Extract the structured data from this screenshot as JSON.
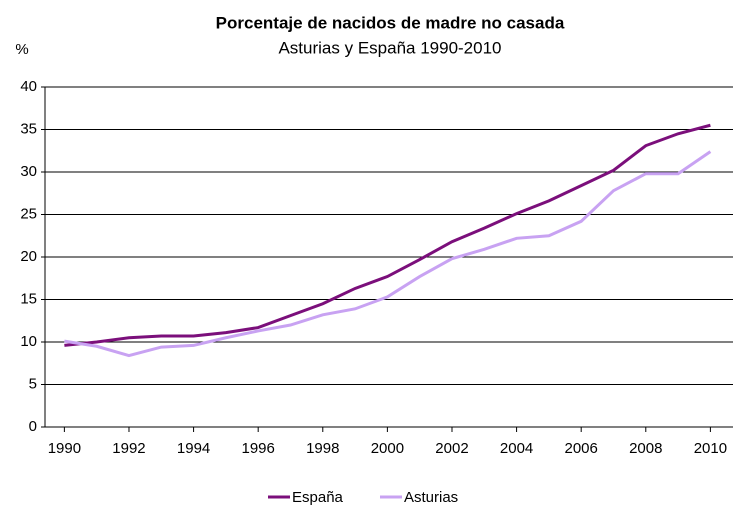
{
  "chart_data": {
    "type": "line",
    "title": "Porcentaje de nacidos de madre no casada",
    "subtitle": "Asturias y España 1990-2010",
    "y_label": "%",
    "x": [
      1990,
      1991,
      1992,
      1993,
      1994,
      1995,
      1996,
      1997,
      1998,
      1999,
      2000,
      2001,
      2002,
      2003,
      2004,
      2005,
      2006,
      2007,
      2008,
      2009,
      2010
    ],
    "series": [
      {
        "name": "España",
        "color": "#7b0f7b",
        "values": [
          9.6,
          10.0,
          10.5,
          10.7,
          10.7,
          11.1,
          11.7,
          13.1,
          14.5,
          16.3,
          17.7,
          19.7,
          21.8,
          23.4,
          25.1,
          26.6,
          28.4,
          30.2,
          33.1,
          34.5,
          35.5
        ]
      },
      {
        "name": "Asturias",
        "color": "#c8a2f2",
        "values": [
          10.1,
          9.5,
          8.4,
          9.4,
          9.6,
          10.5,
          11.3,
          12.0,
          13.2,
          13.9,
          15.3,
          17.7,
          19.8,
          20.9,
          22.2,
          22.5,
          24.2,
          27.8,
          29.8,
          29.8,
          32.4
        ]
      }
    ],
    "xlim": [
      1989.4,
      2010.7
    ],
    "xticks": [
      1990,
      1992,
      1994,
      1996,
      1998,
      2000,
      2002,
      2004,
      2006,
      2008,
      2010
    ],
    "ylim": [
      0,
      40
    ],
    "yticks": [
      0,
      5,
      10,
      15,
      20,
      25,
      30,
      35,
      40
    ],
    "grid": true,
    "legend": "bottom"
  }
}
